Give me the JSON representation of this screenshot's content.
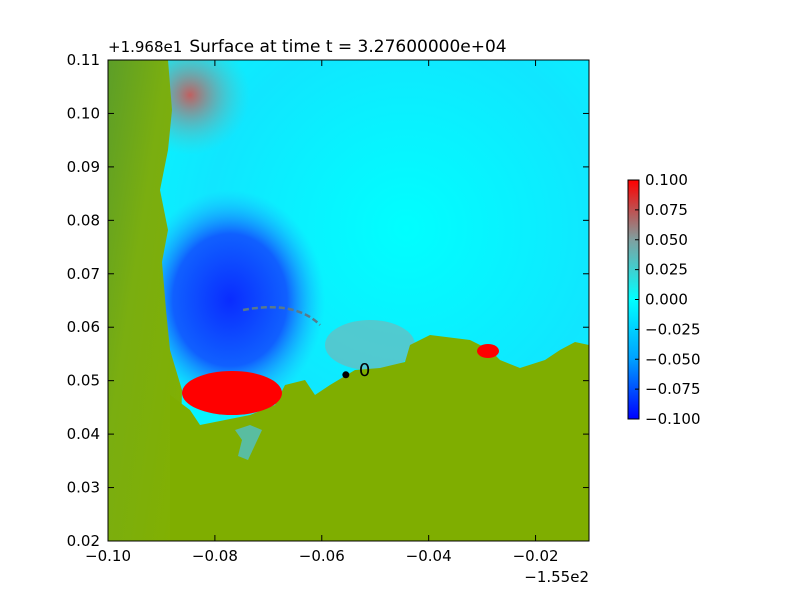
{
  "chart_data": {
    "type": "heatmap",
    "title": "Surface at time t = 3.27600000e+04",
    "x_offset_label": "−1.55e2",
    "y_offset_label": "+1.968e1",
    "xlim": [
      -0.1,
      -0.01
    ],
    "ylim": [
      0.02,
      0.11
    ],
    "x_ticks": [
      "−0.10",
      "−0.08",
      "−0.06",
      "−0.04",
      "−0.02"
    ],
    "y_ticks": [
      "0.02",
      "0.03",
      "0.04",
      "0.05",
      "0.06",
      "0.07",
      "0.08",
      "0.09",
      "0.10",
      "0.11"
    ],
    "colorbar": {
      "range": [
        -0.1,
        0.1
      ],
      "ticks": [
        "−0.100",
        "−0.075",
        "−0.050",
        "−0.025",
        "0.000",
        "0.025",
        "0.050",
        "0.075",
        "0.100"
      ],
      "colors": {
        "low": "#0000ff",
        "mid_low": "#00a0ff",
        "zero": "#00ffff",
        "mid_high": "#7fa0a0",
        "high": "#ff0000"
      }
    },
    "gauge": {
      "x": -0.0555,
      "y": 0.0511,
      "label": "0"
    },
    "land_color": "#7fae00",
    "grid": false
  }
}
